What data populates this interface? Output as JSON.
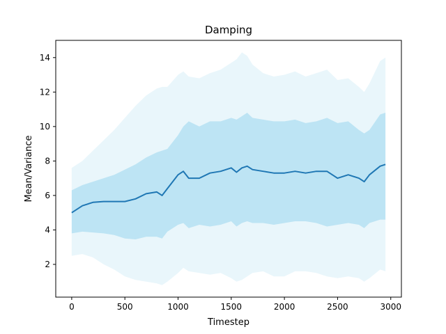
{
  "chart_data": {
    "type": "line",
    "title": "Damping",
    "xlabel": "Timestep",
    "ylabel": "Mean/Variance",
    "xlim": [
      -150,
      3100
    ],
    "ylim": [
      0.1,
      15.0
    ],
    "xticks": [
      0,
      500,
      1000,
      1500,
      2000,
      2500,
      3000
    ],
    "yticks": [
      2,
      4,
      6,
      8,
      10,
      12,
      14
    ],
    "grid": false,
    "legend": "none",
    "colors": {
      "mean_line": "#1f77b4",
      "inner_band": "#87ceeb",
      "outer_band": "#87ceeb",
      "inner_band_opacity": 0.45,
      "outer_band_opacity": 0.18
    },
    "x": [
      0,
      100,
      200,
      300,
      400,
      500,
      600,
      700,
      800,
      850,
      900,
      1000,
      1050,
      1100,
      1200,
      1300,
      1400,
      1500,
      1550,
      1600,
      1650,
      1700,
      1800,
      1900,
      2000,
      2100,
      2200,
      2300,
      2400,
      2500,
      2600,
      2700,
      2750,
      2800,
      2900,
      2950
    ],
    "series": [
      {
        "values": [
          5.0,
          5.4,
          5.6,
          5.65,
          5.65,
          5.65,
          5.8,
          6.1,
          6.2,
          6.0,
          6.4,
          7.2,
          7.4,
          7.0,
          7.0,
          7.3,
          7.4,
          7.6,
          7.35,
          7.6,
          7.7,
          7.5,
          7.4,
          7.3,
          7.3,
          7.4,
          7.3,
          7.4,
          7.4,
          7.0,
          7.2,
          7.0,
          6.8,
          7.2,
          7.7,
          7.8
        ]
      }
    ],
    "bands": [
      {
        "level": "inner",
        "lower": [
          3.8,
          3.9,
          3.85,
          3.8,
          3.7,
          3.5,
          3.45,
          3.6,
          3.6,
          3.5,
          3.9,
          4.3,
          4.4,
          4.1,
          4.3,
          4.2,
          4.3,
          4.5,
          4.2,
          4.4,
          4.5,
          4.4,
          4.4,
          4.3,
          4.4,
          4.5,
          4.5,
          4.4,
          4.2,
          4.3,
          4.4,
          4.3,
          4.1,
          4.4,
          4.6,
          4.6
        ],
        "upper": [
          6.3,
          6.6,
          6.8,
          7.0,
          7.2,
          7.5,
          7.8,
          8.2,
          8.5,
          8.6,
          8.7,
          9.5,
          10.0,
          10.3,
          10.0,
          10.3,
          10.3,
          10.5,
          10.4,
          10.6,
          10.8,
          10.5,
          10.4,
          10.3,
          10.3,
          10.4,
          10.2,
          10.3,
          10.5,
          10.2,
          10.3,
          9.8,
          9.6,
          9.8,
          10.7,
          10.8
        ]
      },
      {
        "level": "outer",
        "lower": [
          2.5,
          2.6,
          2.4,
          2.0,
          1.7,
          1.3,
          1.1,
          1.0,
          0.9,
          0.8,
          1.0,
          1.5,
          1.8,
          1.6,
          1.5,
          1.4,
          1.5,
          1.2,
          1.0,
          1.1,
          1.3,
          1.5,
          1.6,
          1.3,
          1.3,
          1.6,
          1.6,
          1.5,
          1.3,
          1.2,
          1.3,
          1.2,
          1.0,
          1.2,
          1.7,
          1.6
        ],
        "upper": [
          7.6,
          8.0,
          8.6,
          9.2,
          9.8,
          10.5,
          11.2,
          11.8,
          12.2,
          12.3,
          12.3,
          13.0,
          13.2,
          12.9,
          12.8,
          13.1,
          13.3,
          13.7,
          13.9,
          14.3,
          14.1,
          13.6,
          13.1,
          12.9,
          13.0,
          13.2,
          12.9,
          13.1,
          13.3,
          12.7,
          12.8,
          12.3,
          12.0,
          12.5,
          13.8,
          14.0
        ]
      }
    ]
  }
}
